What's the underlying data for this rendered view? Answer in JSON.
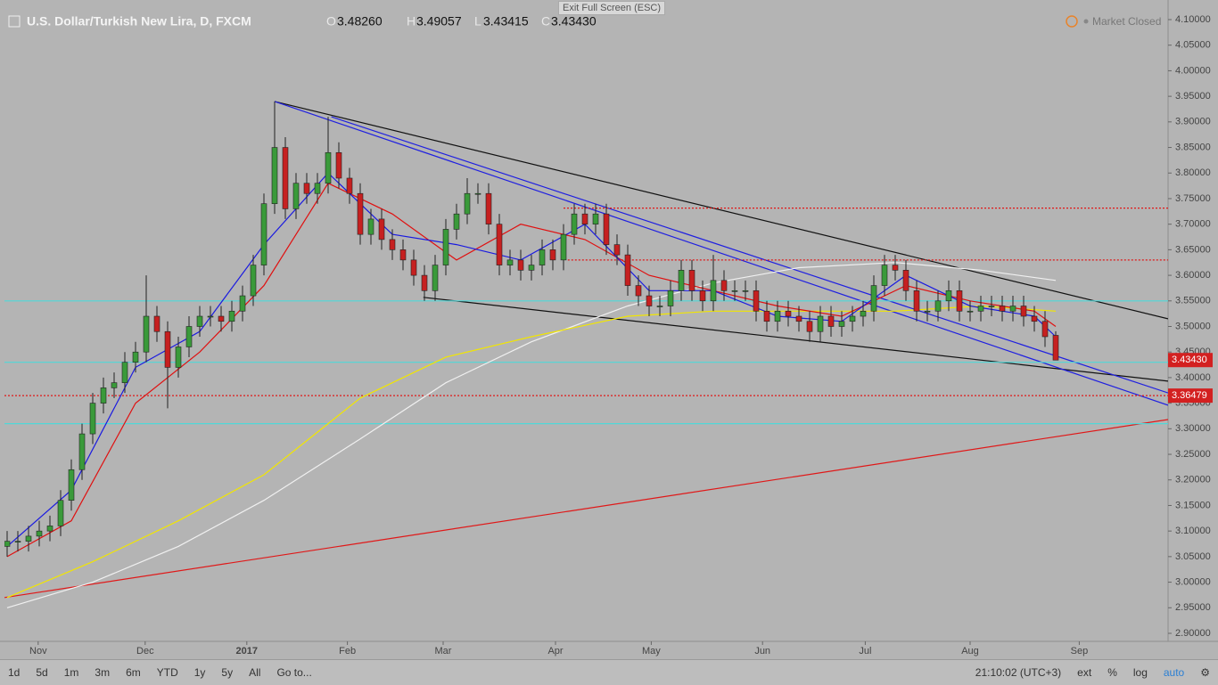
{
  "header": {
    "title": "U.S. Dollar/Turkish New Lira, D, FXCM",
    "o_key": "O",
    "o": "3.48260",
    "h_key": "H",
    "h": "3.49057",
    "l_key": "L",
    "l": "3.43415",
    "c_key": "C",
    "c": "3.43430",
    "status": "Market Closed",
    "tooltip": "Exit Full Screen (ESC)"
  },
  "toolbar": {
    "ranges": [
      "1d",
      "5d",
      "1m",
      "3m",
      "6m",
      "YTD",
      "1y",
      "5y",
      "All",
      "Go to..."
    ],
    "clock": "21:10:02 (UTC+3)",
    "options": [
      "ext",
      "%",
      "log",
      "auto"
    ]
  },
  "chart_data": {
    "type": "candlestick",
    "open": [
      3.07,
      3.08,
      3.08,
      3.09,
      3.1,
      3.11,
      3.16,
      3.22,
      3.29,
      3.35,
      3.38,
      3.39,
      3.43,
      3.45,
      3.52,
      3.49,
      3.42,
      3.46,
      3.5,
      3.52,
      3.52,
      3.51,
      3.53,
      3.56,
      3.62,
      3.74,
      3.85,
      3.73,
      3.78,
      3.76,
      3.78,
      3.84,
      3.79,
      3.76,
      3.68,
      3.71,
      3.67,
      3.65,
      3.63,
      3.6,
      3.57,
      3.62,
      3.69,
      3.72,
      3.76,
      3.76,
      3.7,
      3.62,
      3.63,
      3.61,
      3.62,
      3.65,
      3.63,
      3.68,
      3.72,
      3.7,
      3.72,
      3.66,
      3.64,
      3.58,
      3.56,
      3.54,
      3.54,
      3.57,
      3.61,
      3.57,
      3.55,
      3.59,
      3.57,
      3.57,
      3.57,
      3.53,
      3.51,
      3.53,
      3.52,
      3.51,
      3.49,
      3.52,
      3.5,
      3.51,
      3.52,
      3.53,
      3.58,
      3.62,
      3.61,
      3.57,
      3.53,
      3.53,
      3.55,
      3.57,
      3.53,
      3.53,
      3.54,
      3.54,
      3.53,
      3.54,
      3.52,
      3.51,
      3.4826
    ],
    "high": [
      3.1,
      3.1,
      3.11,
      3.12,
      3.13,
      3.18,
      3.24,
      3.31,
      3.37,
      3.4,
      3.41,
      3.45,
      3.47,
      3.6,
      3.54,
      3.51,
      3.48,
      3.52,
      3.54,
      3.54,
      3.54,
      3.55,
      3.58,
      3.64,
      3.76,
      3.94,
      3.87,
      3.8,
      3.8,
      3.8,
      3.91,
      3.86,
      3.81,
      3.78,
      3.73,
      3.73,
      3.69,
      3.67,
      3.65,
      3.62,
      3.64,
      3.71,
      3.74,
      3.79,
      3.78,
      3.78,
      3.72,
      3.65,
      3.65,
      3.64,
      3.67,
      3.67,
      3.7,
      3.74,
      3.74,
      3.74,
      3.74,
      3.68,
      3.66,
      3.6,
      3.58,
      3.56,
      3.59,
      3.63,
      3.63,
      3.59,
      3.64,
      3.61,
      3.59,
      3.59,
      3.59,
      3.55,
      3.55,
      3.55,
      3.54,
      3.53,
      3.54,
      3.54,
      3.53,
      3.54,
      3.55,
      3.6,
      3.64,
      3.64,
      3.63,
      3.59,
      3.55,
      3.57,
      3.59,
      3.59,
      3.55,
      3.56,
      3.56,
      3.56,
      3.56,
      3.56,
      3.54,
      3.53,
      3.49057
    ],
    "low": [
      3.05,
      3.06,
      3.06,
      3.07,
      3.08,
      3.09,
      3.14,
      3.2,
      3.27,
      3.33,
      3.36,
      3.37,
      3.41,
      3.43,
      3.47,
      3.34,
      3.4,
      3.44,
      3.48,
      3.5,
      3.49,
      3.49,
      3.51,
      3.54,
      3.6,
      3.72,
      3.71,
      3.71,
      3.74,
      3.74,
      3.76,
      3.77,
      3.74,
      3.66,
      3.66,
      3.65,
      3.63,
      3.61,
      3.58,
      3.55,
      3.55,
      3.6,
      3.67,
      3.7,
      3.74,
      3.68,
      3.6,
      3.6,
      3.59,
      3.59,
      3.6,
      3.61,
      3.61,
      3.66,
      3.68,
      3.68,
      3.64,
      3.62,
      3.56,
      3.54,
      3.52,
      3.52,
      3.52,
      3.55,
      3.55,
      3.53,
      3.53,
      3.55,
      3.55,
      3.55,
      3.51,
      3.49,
      3.49,
      3.5,
      3.49,
      3.47,
      3.47,
      3.48,
      3.48,
      3.49,
      3.5,
      3.51,
      3.56,
      3.59,
      3.55,
      3.51,
      3.51,
      3.51,
      3.53,
      3.51,
      3.51,
      3.51,
      3.52,
      3.51,
      3.51,
      3.5,
      3.49,
      3.46,
      3.43415
    ],
    "close": [
      3.08,
      3.08,
      3.09,
      3.1,
      3.11,
      3.16,
      3.22,
      3.29,
      3.35,
      3.38,
      3.39,
      3.43,
      3.45,
      3.52,
      3.49,
      3.42,
      3.46,
      3.5,
      3.52,
      3.52,
      3.51,
      3.53,
      3.56,
      3.62,
      3.74,
      3.85,
      3.73,
      3.78,
      3.76,
      3.78,
      3.84,
      3.79,
      3.76,
      3.68,
      3.71,
      3.67,
      3.65,
      3.63,
      3.6,
      3.57,
      3.62,
      3.69,
      3.72,
      3.76,
      3.76,
      3.7,
      3.62,
      3.63,
      3.61,
      3.62,
      3.65,
      3.63,
      3.68,
      3.72,
      3.7,
      3.72,
      3.66,
      3.64,
      3.58,
      3.56,
      3.54,
      3.54,
      3.57,
      3.61,
      3.57,
      3.55,
      3.59,
      3.57,
      3.57,
      3.57,
      3.53,
      3.51,
      3.53,
      3.52,
      3.51,
      3.49,
      3.52,
      3.5,
      3.51,
      3.52,
      3.53,
      3.58,
      3.62,
      3.61,
      3.57,
      3.53,
      3.53,
      3.55,
      3.57,
      3.53,
      3.53,
      3.54,
      3.54,
      3.53,
      3.54,
      3.52,
      3.51,
      3.48,
      3.4343
    ],
    "up_color": "#3a9a3a",
    "down_color": "#c62020",
    "lines": [
      {
        "color": "#f0f0f0",
        "x": [
          0,
          8,
          16,
          24,
          33,
          41,
          49,
          58,
          66,
          74,
          83,
          91,
          98
        ],
        "values": [
          2.95,
          3.0,
          3.07,
          3.16,
          3.28,
          3.39,
          3.47,
          3.54,
          3.585,
          3.615,
          3.625,
          3.61,
          3.59
        ]
      },
      {
        "color": "#f2e600",
        "x": [
          0,
          8,
          16,
          24,
          33,
          41,
          49,
          58,
          66,
          74,
          83,
          91,
          98
        ],
        "values": [
          2.97,
          3.04,
          3.12,
          3.21,
          3.36,
          3.44,
          3.48,
          3.52,
          3.53,
          3.53,
          3.53,
          3.54,
          3.53
        ]
      },
      {
        "color": "#e01010",
        "x": [
          0,
          6,
          12,
          18,
          24,
          30,
          36,
          42,
          48,
          54,
          60,
          66,
          72,
          78,
          84,
          90,
          96,
          98
        ],
        "values": [
          3.05,
          3.12,
          3.35,
          3.45,
          3.58,
          3.78,
          3.72,
          3.63,
          3.7,
          3.67,
          3.6,
          3.57,
          3.54,
          3.52,
          3.58,
          3.55,
          3.53,
          3.5
        ]
      },
      {
        "color": "#1a1ae0",
        "x": [
          0,
          6,
          12,
          18,
          24,
          30,
          36,
          42,
          48,
          54,
          60,
          66,
          72,
          78,
          84,
          90,
          96,
          98
        ],
        "values": [
          3.07,
          3.18,
          3.42,
          3.49,
          3.66,
          3.8,
          3.68,
          3.66,
          3.63,
          3.7,
          3.57,
          3.57,
          3.52,
          3.51,
          3.6,
          3.54,
          3.52,
          3.48
        ]
      }
    ],
    "drawings": [
      {
        "color": "#111111",
        "x": [
          25,
          108.5
        ],
        "values": [
          3.94,
          3.515
        ]
      },
      {
        "color": "#111111",
        "x": [
          38.9,
          108.5
        ],
        "values": [
          3.557,
          3.393
        ]
      },
      {
        "color": "#2020e0",
        "x": [
          25,
          108.5
        ],
        "values": [
          3.94,
          3.346
        ]
      },
      {
        "color": "#2020e0",
        "x": [
          30.3,
          108.5
        ],
        "values": [
          3.91,
          3.37
        ]
      },
      {
        "color": "#e01818",
        "x": [
          -0.25,
          108.5
        ],
        "values": [
          2.97,
          3.318
        ]
      },
      {
        "color": "#e01818",
        "dash": true,
        "x": [
          52,
          108.5
        ],
        "values": [
          3.7315,
          3.7315
        ]
      },
      {
        "color": "#e01818",
        "dash": true,
        "x": [
          52.4,
          108.5
        ],
        "values": [
          3.63,
          3.63
        ]
      },
      {
        "color": "#e01818",
        "dash": true,
        "x": [
          -0.25,
          108.5
        ],
        "values": [
          3.36479,
          3.36479
        ]
      },
      {
        "color": "#4fd8d8",
        "x": [
          -0.25,
          108.5
        ],
        "values": [
          3.55,
          3.55
        ]
      },
      {
        "color": "#4fd8d8",
        "x": [
          -0.25,
          108.5
        ],
        "values": [
          3.43,
          3.43
        ]
      },
      {
        "color": "#4fd8d8",
        "x": [
          -0.25,
          108.5
        ],
        "values": [
          3.31,
          3.31
        ]
      }
    ],
    "price_labels": [
      {
        "value": 3.4343,
        "label": "3.43430",
        "color": "#d32020"
      },
      {
        "value": 3.36479,
        "label": "3.36479",
        "color": "#d32020"
      }
    ],
    "xlim": [
      -0.25,
      108.5
    ],
    "ylim": [
      2.8843,
      4.1122
    ],
    "xticks": [
      {
        "value": 2.9,
        "label": "Nov"
      },
      {
        "value": 12.9,
        "label": "Dec"
      },
      {
        "value": 22.4,
        "label": "2017"
      },
      {
        "value": 31.8,
        "label": "Feb"
      },
      {
        "value": 40.75,
        "label": "Mar"
      },
      {
        "value": 51.25,
        "label": "Apr"
      },
      {
        "value": 60.2,
        "label": "May"
      },
      {
        "value": 70.6,
        "label": "Jun"
      },
      {
        "value": 80.2,
        "label": "Jul"
      },
      {
        "value": 90,
        "label": "Aug"
      },
      {
        "value": 100.2,
        "label": "Sep"
      }
    ],
    "yticks": [
      {
        "value": 2.9,
        "label": "2.90000"
      },
      {
        "value": 2.95,
        "label": "2.95000"
      },
      {
        "value": 3.0,
        "label": "3.00000"
      },
      {
        "value": 3.05,
        "label": "3.05000"
      },
      {
        "value": 3.1,
        "label": "3.10000"
      },
      {
        "value": 3.15,
        "label": "3.15000"
      },
      {
        "value": 3.2,
        "label": "3.20000"
      },
      {
        "value": 3.25,
        "label": "3.25000"
      },
      {
        "value": 3.3,
        "label": "3.30000"
      },
      {
        "value": 3.35,
        "label": "3.35000"
      },
      {
        "value": 3.4,
        "label": "3.40000"
      },
      {
        "value": 3.45,
        "label": "3.45000"
      },
      {
        "value": 3.5,
        "label": "3.50000"
      },
      {
        "value": 3.55,
        "label": "3.55000"
      },
      {
        "value": 3.6,
        "label": "3.60000"
      },
      {
        "value": 3.65,
        "label": "3.65000"
      },
      {
        "value": 3.7,
        "label": "3.70000"
      },
      {
        "value": 3.75,
        "label": "3.75000"
      },
      {
        "value": 3.8,
        "label": "3.80000"
      },
      {
        "value": 3.85,
        "label": "3.85000"
      },
      {
        "value": 3.9,
        "label": "3.90000"
      },
      {
        "value": 3.95,
        "label": "3.95000"
      },
      {
        "value": 4.0,
        "label": "4.00000"
      },
      {
        "value": 4.05,
        "label": "4.05000"
      },
      {
        "value": 4.1,
        "label": "4.10000"
      }
    ]
  }
}
